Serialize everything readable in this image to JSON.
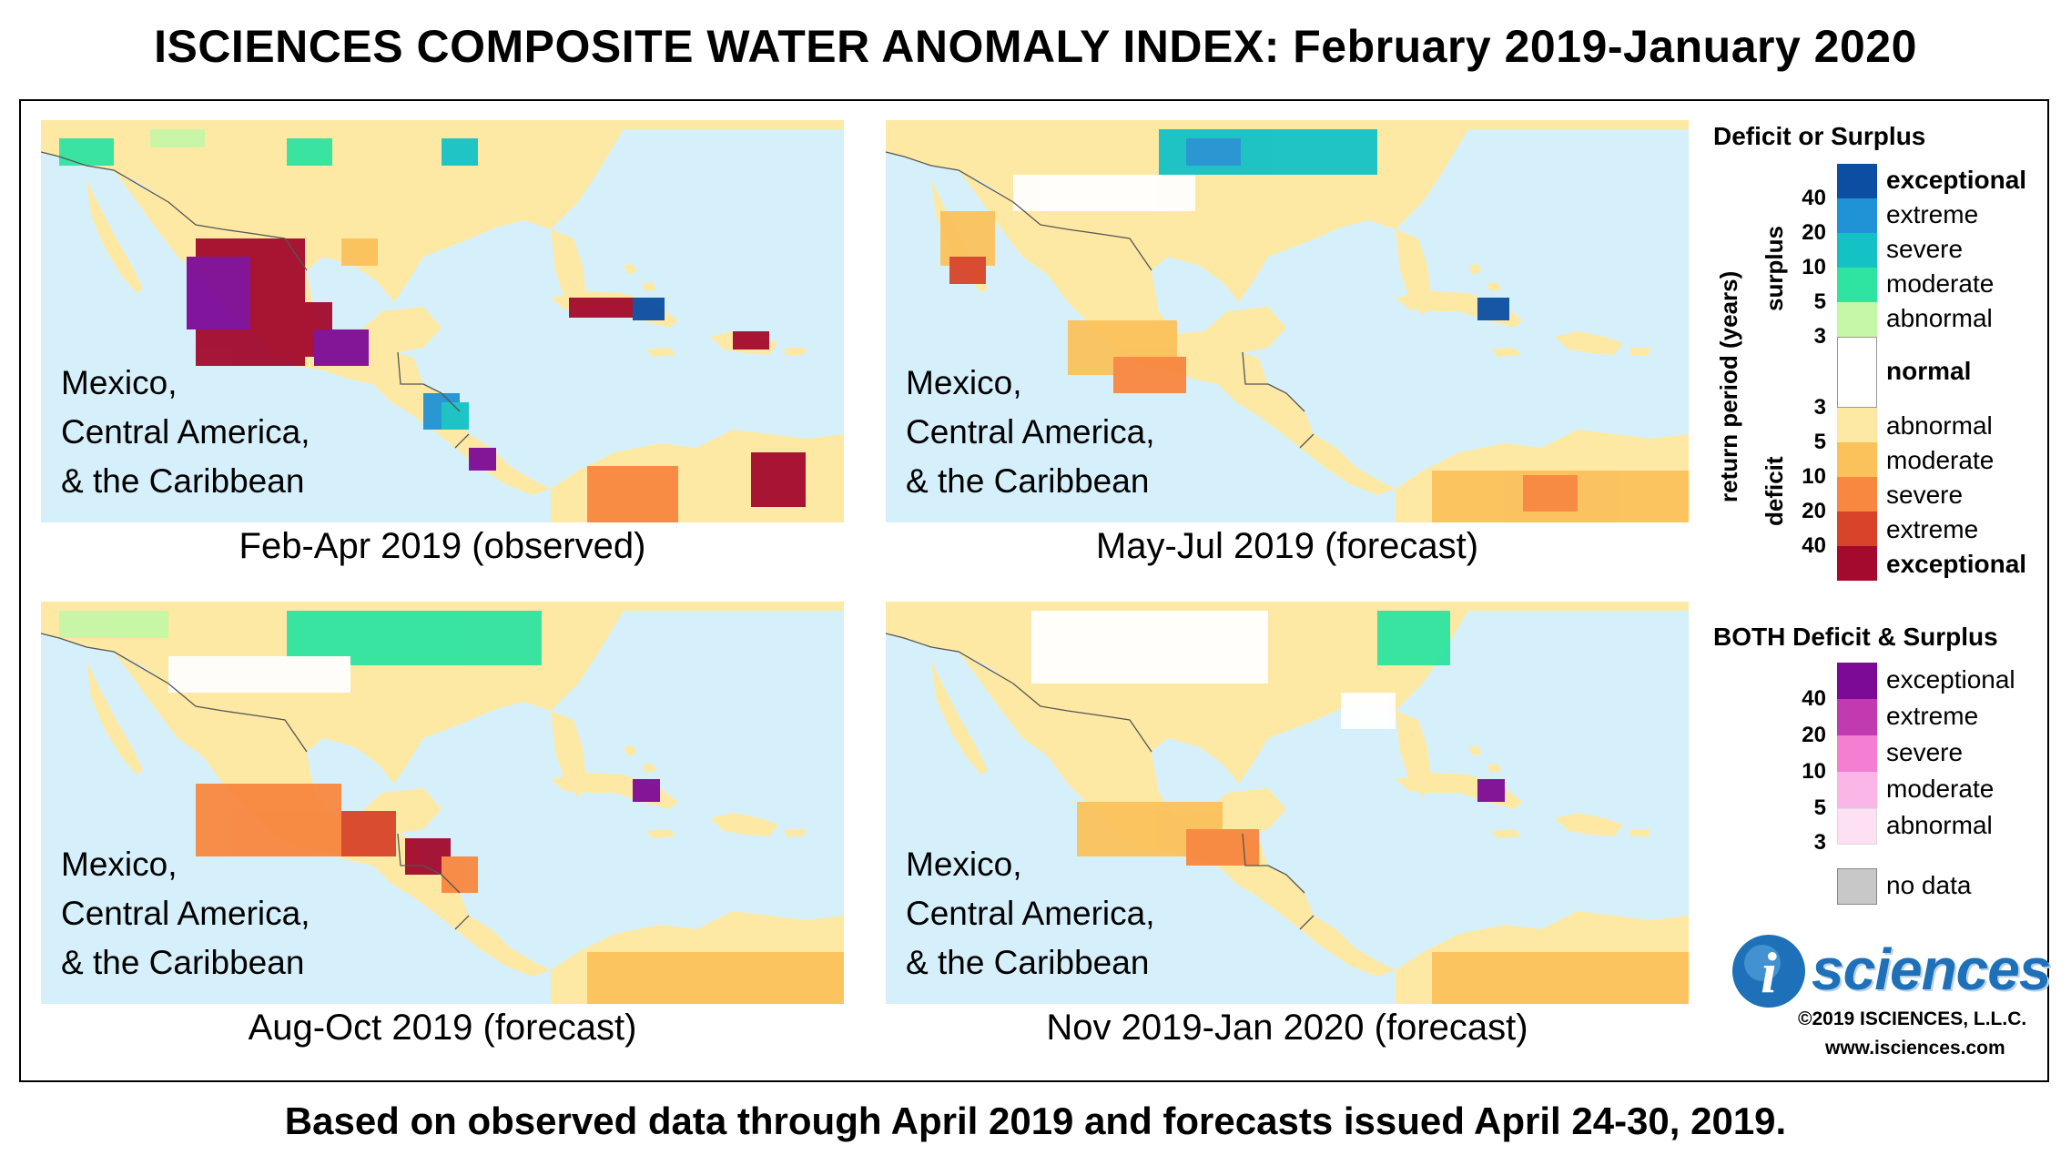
{
  "title": "ISCIENCES COMPOSITE WATER ANOMALY INDEX: February 2019-January 2020",
  "footer": "Based on observed data through April 2019 and forecasts issued April 24-30, 2019.",
  "region_label": [
    "Mexico,",
    "Central America,",
    "& the Caribbean"
  ],
  "panels": [
    {
      "caption": "Feb-Apr 2019 (observed)"
    },
    {
      "caption": "May-Jul 2019 (forecast)"
    },
    {
      "caption": "Aug-Oct 2019 (forecast)"
    },
    {
      "caption": "Nov 2019-Jan 2020 (forecast)"
    }
  ],
  "legend": {
    "title_single": "Deficit or Surplus",
    "axis_label": "return period (years)",
    "surplus_label": "surplus",
    "deficit_label": "deficit",
    "surplus": [
      {
        "label": "exceptional",
        "color": "#0b4ea2",
        "bold": true
      },
      {
        "label": "extreme",
        "color": "#1f93d6"
      },
      {
        "label": "severe",
        "color": "#14c2c6"
      },
      {
        "label": "moderate",
        "color": "#2fe3a0"
      },
      {
        "label": "abnormal",
        "color": "#c5f7a6"
      }
    ],
    "surplus_ticks": [
      "40",
      "20",
      "10",
      "5",
      "3"
    ],
    "normal": {
      "label": "normal",
      "color": "#ffffff"
    },
    "deficit": [
      {
        "label": "abnormal",
        "color": "#fde9a4"
      },
      {
        "label": "moderate",
        "color": "#fbc25c"
      },
      {
        "label": "severe",
        "color": "#f8873f"
      },
      {
        "label": "extreme",
        "color": "#d8442a"
      },
      {
        "label": "exceptional",
        "color": "#a30a2e",
        "bold": true
      }
    ],
    "deficit_ticks": [
      "3",
      "5",
      "10",
      "20",
      "40"
    ],
    "title_both": "BOTH Deficit & Surplus",
    "both": [
      {
        "label": "exceptional",
        "color": "#7d0a97"
      },
      {
        "label": "extreme",
        "color": "#c23ab0"
      },
      {
        "label": "severe",
        "color": "#f47fd2"
      },
      {
        "label": "moderate",
        "color": "#f9b6e6"
      },
      {
        "label": "abnormal",
        "color": "#fde0f2"
      }
    ],
    "both_ticks": [
      "40",
      "20",
      "10",
      "5",
      "3"
    ],
    "nodata": {
      "label": "no data",
      "color": "#c8c8c8"
    }
  },
  "logo": "sciences",
  "logo_i": "i",
  "copyright": "©2019 ISCIENCES, L.L.C.",
  "website": "www.isciences.com"
}
